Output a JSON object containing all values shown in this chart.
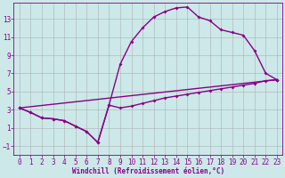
{
  "bg_color": "#cce8e8",
  "grid_color": "#aaaaaa",
  "line_color": "#880088",
  "marker": "D",
  "marker_size": 2.0,
  "line_width": 1.0,
  "xlim": [
    -0.5,
    23.5
  ],
  "ylim": [
    -2,
    14.8
  ],
  "xticks": [
    0,
    1,
    2,
    3,
    4,
    5,
    6,
    7,
    8,
    9,
    10,
    11,
    12,
    13,
    14,
    15,
    16,
    17,
    18,
    19,
    20,
    21,
    22,
    23
  ],
  "yticks": [
    -1,
    1,
    3,
    5,
    7,
    9,
    11,
    13
  ],
  "xlabel": "Windchill (Refroidissement éolien,°C)",
  "xlabel_fontsize": 5.5,
  "tick_fontsize": 5.5,
  "line1_x": [
    0,
    1,
    2,
    3,
    4,
    5,
    6,
    7,
    8,
    9,
    10,
    11,
    12,
    13,
    14,
    15,
    16,
    17,
    18,
    19,
    20,
    21,
    22,
    23
  ],
  "line1_y": [
    3.2,
    2.7,
    2.1,
    2.0,
    1.8,
    1.2,
    0.6,
    -0.6,
    3.5,
    3.2,
    3.4,
    3.7,
    4.0,
    4.3,
    4.5,
    4.7,
    4.9,
    5.1,
    5.3,
    5.5,
    5.7,
    5.9,
    6.2,
    6.3
  ],
  "line2_x": [
    0,
    1,
    2,
    3,
    4,
    5,
    6,
    7,
    8,
    9,
    10,
    11,
    12,
    13,
    14,
    15,
    16,
    17,
    18,
    19,
    20,
    21,
    22,
    23
  ],
  "line2_y": [
    3.2,
    2.7,
    2.1,
    2.0,
    1.8,
    1.2,
    0.6,
    -0.6,
    3.5,
    8.0,
    10.5,
    12.0,
    13.2,
    13.8,
    14.2,
    14.3,
    13.2,
    12.8,
    11.8,
    11.5,
    11.2,
    9.5,
    7.0,
    6.3
  ],
  "line3_x": [
    0,
    23
  ],
  "line3_y": [
    3.2,
    6.3
  ]
}
